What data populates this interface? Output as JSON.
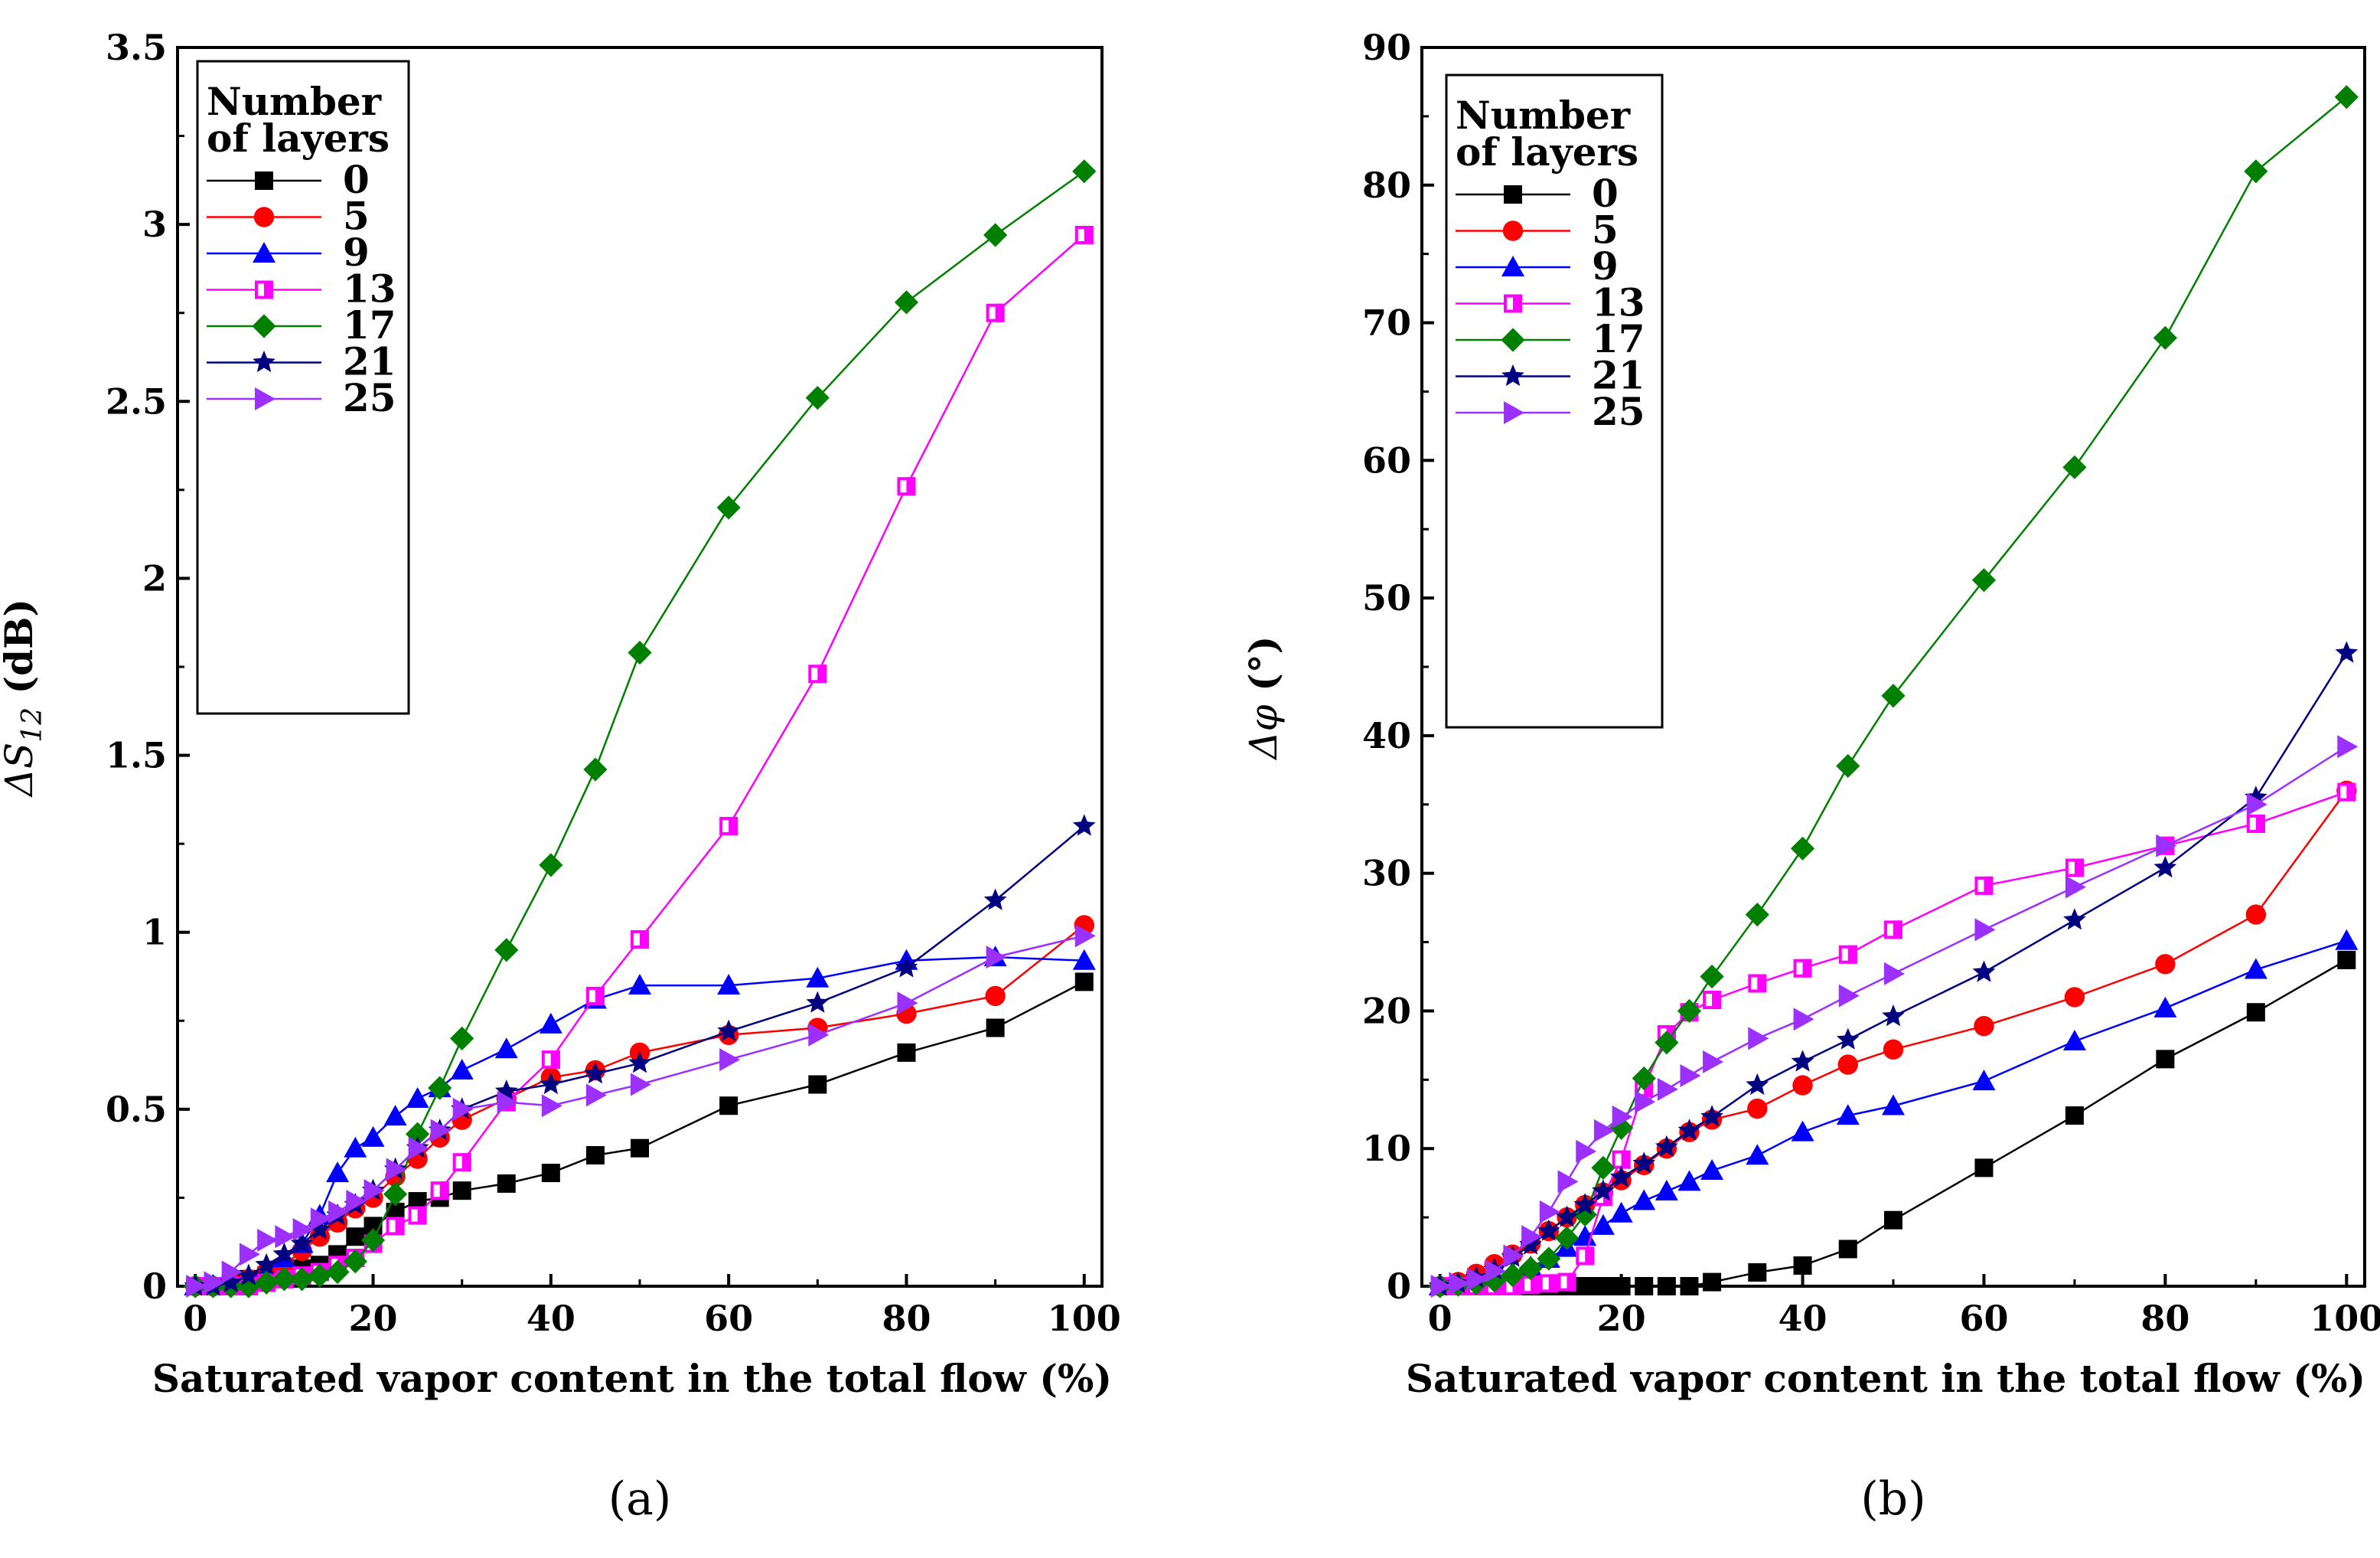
{
  "chart_data": [
    {
      "type": "line",
      "panel_label": "(a)",
      "xlabel": "Saturated vapor content in the total flow  (%)",
      "ylabel": "ΔS12 (dB)",
      "ylabel_main": "ΔS",
      "ylabel_sub": "12",
      "ylabel_unit": " (dB)",
      "xlim": [
        -2,
        102
      ],
      "ylim": [
        0,
        3.5
      ],
      "xticks": [
        0,
        20,
        40,
        60,
        80,
        100
      ],
      "xtick_labels": [
        "0",
        "20",
        "40",
        "60",
        "80",
        "100"
      ],
      "yticks": [
        0,
        0.5,
        1,
        1.5,
        2,
        2.5,
        3,
        3.5
      ],
      "ytick_labels": [
        "0",
        "0.5",
        "1",
        "1.5",
        "2",
        "2.5",
        "3",
        "3.5"
      ],
      "legend_title": [
        "Number",
        "of layers"
      ],
      "legend_position": "top-left",
      "series": [
        {
          "name": "0",
          "color": "#000000",
          "marker": "square",
          "x": [
            0,
            2,
            4,
            6,
            8,
            10,
            12,
            14,
            16,
            18,
            20,
            22.5,
            25,
            27.5,
            30,
            35,
            40,
            45,
            50,
            60,
            70,
            80,
            90,
            100
          ],
          "y": [
            0,
            0,
            0.01,
            0.02,
            0.03,
            0.04,
            0.05,
            0.06,
            0.09,
            0.14,
            0.17,
            0.21,
            0.24,
            0.25,
            0.27,
            0.29,
            0.32,
            0.37,
            0.39,
            0.51,
            0.57,
            0.66,
            0.73,
            0.86
          ]
        },
        {
          "name": "5",
          "color": "#ff0000",
          "marker": "circle",
          "x": [
            0,
            2,
            4,
            6,
            8,
            10,
            12,
            14,
            16,
            18,
            20,
            22.5,
            25,
            27.5,
            30,
            35,
            40,
            45,
            50,
            60,
            70,
            80,
            90,
            100
          ],
          "y": [
            0,
            0,
            0.01,
            0.02,
            0.04,
            0.06,
            0.1,
            0.14,
            0.18,
            0.22,
            0.25,
            0.31,
            0.36,
            0.42,
            0.47,
            0.53,
            0.59,
            0.61,
            0.66,
            0.71,
            0.73,
            0.77,
            0.82,
            1.02
          ]
        },
        {
          "name": "9",
          "color": "#0000ff",
          "marker": "triangle",
          "x": [
            0,
            2,
            4,
            6,
            8,
            10,
            12,
            14,
            16,
            18,
            20,
            22.5,
            25,
            27.5,
            30,
            35,
            40,
            45,
            50,
            60,
            70,
            80,
            90,
            100
          ],
          "y": [
            0,
            0,
            0.01,
            0.02,
            0.04,
            0.08,
            0.12,
            0.2,
            0.32,
            0.39,
            0.42,
            0.48,
            0.53,
            0.56,
            0.61,
            0.67,
            0.74,
            0.81,
            0.85,
            0.85,
            0.87,
            0.92,
            0.93,
            0.92
          ]
        },
        {
          "name": "13",
          "color": "#ff00ff",
          "marker": "half-square",
          "x": [
            0,
            2,
            4,
            6,
            8,
            10,
            12,
            14,
            16,
            18,
            20,
            22.5,
            25,
            27.5,
            30,
            35,
            40,
            45,
            50,
            60,
            70,
            80,
            90,
            100
          ],
          "y": [
            0,
            0,
            0,
            0,
            0.01,
            0.02,
            0.03,
            0.04,
            0.06,
            0.08,
            0.12,
            0.17,
            0.2,
            0.27,
            0.35,
            0.52,
            0.64,
            0.82,
            0.98,
            1.3,
            1.73,
            2.26,
            2.75,
            2.97
          ]
        },
        {
          "name": "17",
          "color": "#008000",
          "marker": "diamond",
          "x": [
            0,
            2,
            4,
            6,
            8,
            10,
            12,
            14,
            16,
            18,
            20,
            22.5,
            25,
            27.5,
            30,
            35,
            40,
            45,
            50,
            60,
            70,
            80,
            90,
            100
          ],
          "y": [
            0,
            0,
            0,
            0,
            0.01,
            0.02,
            0.02,
            0.03,
            0.04,
            0.07,
            0.13,
            0.26,
            0.43,
            0.56,
            0.7,
            0.95,
            1.19,
            1.46,
            1.79,
            2.2,
            2.51,
            2.78,
            2.97,
            3.15
          ]
        },
        {
          "name": "21",
          "color": "#000080",
          "marker": "star",
          "x": [
            0,
            2,
            4,
            6,
            8,
            10,
            12,
            14,
            16,
            18,
            20,
            22.5,
            25,
            27.5,
            30,
            35,
            40,
            45,
            50,
            60,
            70,
            80,
            90,
            100
          ],
          "y": [
            0,
            0,
            0.01,
            0.03,
            0.06,
            0.09,
            0.12,
            0.16,
            0.2,
            0.23,
            0.27,
            0.33,
            0.39,
            0.44,
            0.5,
            0.55,
            0.57,
            0.6,
            0.63,
            0.72,
            0.8,
            0.9,
            1.09,
            1.3
          ]
        },
        {
          "name": "25",
          "color": "#9b30ff",
          "marker": "triangle-right",
          "x": [
            0,
            2,
            4,
            6,
            8,
            10,
            12,
            14,
            16,
            18,
            20,
            22.5,
            25,
            27.5,
            30,
            35,
            40,
            45,
            50,
            60,
            70,
            80,
            90,
            100
          ],
          "y": [
            0,
            0.01,
            0.04,
            0.09,
            0.13,
            0.14,
            0.16,
            0.19,
            0.21,
            0.24,
            0.27,
            0.33,
            0.39,
            0.44,
            0.5,
            0.52,
            0.51,
            0.54,
            0.57,
            0.64,
            0.71,
            0.8,
            0.93,
            0.99
          ]
        }
      ]
    },
    {
      "type": "line",
      "panel_label": "(b)",
      "xlabel": "Saturated vapor content in the total flow  (%)",
      "ylabel": "Δφ (°)",
      "ylabel_main": "Δφ",
      "ylabel_sub": "",
      "ylabel_unit": " (°)",
      "xlim": [
        -2,
        102
      ],
      "ylim": [
        0,
        90
      ],
      "xticks": [
        0,
        20,
        40,
        60,
        80,
        100
      ],
      "xtick_labels": [
        "0",
        "20",
        "40",
        "60",
        "80",
        "100"
      ],
      "yticks": [
        0,
        10,
        20,
        30,
        40,
        50,
        60,
        70,
        80,
        90
      ],
      "ytick_labels": [
        "0",
        "10",
        "20",
        "30",
        "40",
        "50",
        "60",
        "70",
        "80",
        "90"
      ],
      "legend_title": [
        "Number",
        "of layers"
      ],
      "legend_position": "top-left",
      "series": [
        {
          "name": "0",
          "color": "#000000",
          "marker": "square",
          "x": [
            0,
            2,
            4,
            6,
            8,
            10,
            12,
            14,
            16,
            18,
            20,
            22.5,
            25,
            27.5,
            30,
            35,
            40,
            45,
            50,
            60,
            70,
            80,
            90,
            100
          ],
          "y": [
            0,
            0,
            0,
            0,
            0,
            0,
            0,
            0,
            0,
            0,
            0,
            0,
            0,
            0,
            0.3,
            1,
            1.5,
            2.7,
            4.8,
            8.6,
            12.4,
            16.5,
            19.9,
            23.7
          ]
        },
        {
          "name": "5",
          "color": "#ff0000",
          "marker": "circle",
          "x": [
            0,
            2,
            4,
            6,
            8,
            10,
            12,
            14,
            16,
            18,
            20,
            22.5,
            25,
            27.5,
            30,
            35,
            40,
            45,
            50,
            60,
            70,
            80,
            90,
            100
          ],
          "y": [
            0,
            0.3,
            0.9,
            1.6,
            2.3,
            3.1,
            4,
            5,
            5.9,
            6.8,
            7.7,
            8.8,
            10,
            11.2,
            12.1,
            12.9,
            14.6,
            16.1,
            17.2,
            18.9,
            21,
            23.4,
            27,
            36
          ]
        },
        {
          "name": "9",
          "color": "#0000ff",
          "marker": "triangle",
          "x": [
            0,
            2,
            4,
            6,
            8,
            10,
            12,
            14,
            16,
            18,
            20,
            22.5,
            25,
            27.5,
            30,
            35,
            40,
            45,
            50,
            60,
            70,
            80,
            90,
            100
          ],
          "y": [
            0,
            0.1,
            0.3,
            0.6,
            1,
            1.4,
            2,
            2.8,
            3.6,
            4.4,
            5.3,
            6.2,
            6.9,
            7.6,
            8.4,
            9.5,
            11.2,
            12.4,
            13.1,
            14.9,
            17.8,
            20.2,
            23,
            25.1
          ]
        },
        {
          "name": "13",
          "color": "#ff00ff",
          "marker": "half-square",
          "x": [
            0,
            2,
            4,
            6,
            8,
            10,
            12,
            14,
            16,
            18,
            20,
            22.5,
            25,
            27.5,
            30,
            35,
            40,
            45,
            50,
            60,
            70,
            80,
            90,
            100
          ],
          "y": [
            0,
            0,
            0,
            0,
            0,
            0.1,
            0.2,
            0.3,
            2.2,
            6.5,
            9.2,
            14.4,
            18.3,
            19.9,
            20.8,
            22,
            23.1,
            24.1,
            25.9,
            29.1,
            30.4,
            32,
            33.6,
            35.9
          ]
        },
        {
          "name": "17",
          "color": "#008000",
          "marker": "diamond",
          "x": [
            0,
            2,
            4,
            6,
            8,
            10,
            12,
            14,
            16,
            18,
            20,
            22.5,
            25,
            27.5,
            30,
            35,
            40,
            45,
            50,
            60,
            70,
            80,
            90,
            100
          ],
          "y": [
            0,
            0.1,
            0.2,
            0.4,
            0.8,
            1.3,
            2,
            3.5,
            5.2,
            8.6,
            11.5,
            15.1,
            17.7,
            20,
            22.5,
            27,
            31.8,
            37.8,
            42.9,
            51.3,
            59.5,
            68.9,
            81,
            86.4
          ]
        },
        {
          "name": "21",
          "color": "#000080",
          "marker": "star",
          "x": [
            0,
            2,
            4,
            6,
            8,
            10,
            12,
            14,
            16,
            18,
            20,
            22.5,
            25,
            27.5,
            30,
            35,
            40,
            45,
            50,
            60,
            70,
            80,
            90,
            100
          ],
          "y": [
            0,
            0.2,
            0.6,
            1.2,
            2.1,
            3,
            4,
            5,
            5.9,
            6.9,
            7.9,
            8.9,
            10.1,
            11.3,
            12.3,
            14.6,
            16.3,
            17.9,
            19.6,
            22.8,
            26.6,
            30.4,
            35.5,
            46
          ]
        },
        {
          "name": "25",
          "color": "#9b30ff",
          "marker": "triangle-right",
          "x": [
            0,
            2,
            4,
            6,
            8,
            10,
            12,
            14,
            16,
            18,
            20,
            22.5,
            25,
            27.5,
            30,
            35,
            40,
            45,
            50,
            60,
            70,
            80,
            90,
            100
          ],
          "y": [
            0,
            0.2,
            0.5,
            1.1,
            2.2,
            3.6,
            5.4,
            7.6,
            9.8,
            11.3,
            12.3,
            13.4,
            14.3,
            15.3,
            16.3,
            18,
            19.4,
            21.1,
            22.7,
            25.9,
            29,
            32,
            35,
            39.2
          ]
        }
      ]
    }
  ]
}
